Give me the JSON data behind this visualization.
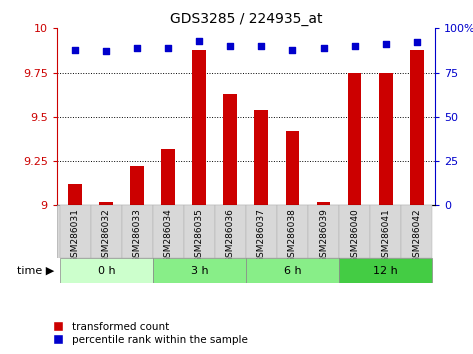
{
  "title": "GDS3285 / 224935_at",
  "samples": [
    "GSM286031",
    "GSM286032",
    "GSM286033",
    "GSM286034",
    "GSM286035",
    "GSM286036",
    "GSM286037",
    "GSM286038",
    "GSM286039",
    "GSM286040",
    "GSM286041",
    "GSM286042"
  ],
  "bar_values": [
    9.12,
    9.02,
    9.22,
    9.32,
    9.88,
    9.63,
    9.54,
    9.42,
    9.02,
    9.75,
    9.75,
    9.88
  ],
  "percentile_values": [
    88,
    87,
    89,
    89,
    93,
    90,
    90,
    88,
    89,
    90,
    91,
    92
  ],
  "bar_color": "#cc0000",
  "percentile_color": "#0000cc",
  "ylim_left": [
    9.0,
    10.0
  ],
  "ylim_right": [
    0,
    100
  ],
  "yticks_left": [
    9.0,
    9.25,
    9.5,
    9.75,
    10.0
  ],
  "yticks_right": [
    0,
    25,
    50,
    75,
    100
  ],
  "ytick_labels_left": [
    "9",
    "9.25",
    "9.5",
    "9.75",
    "10"
  ],
  "ytick_labels_right": [
    "0",
    "25",
    "50",
    "75",
    "100%"
  ],
  "time_groups": [
    {
      "label": "0 h",
      "start": 0,
      "end": 3,
      "color": "#ccffcc"
    },
    {
      "label": "3 h",
      "start": 3,
      "end": 6,
      "color": "#88ee88"
    },
    {
      "label": "6 h",
      "start": 6,
      "end": 9,
      "color": "#88ee88"
    },
    {
      "label": "12 h",
      "start": 9,
      "end": 12,
      "color": "#44cc44"
    }
  ],
  "legend_bar_label": "transformed count",
  "legend_pct_label": "percentile rank within the sample",
  "background_color": "#ffffff",
  "title_fontsize": 10,
  "tick_fontsize": 8,
  "sample_label_fontsize": 6.5,
  "bar_width": 0.45
}
